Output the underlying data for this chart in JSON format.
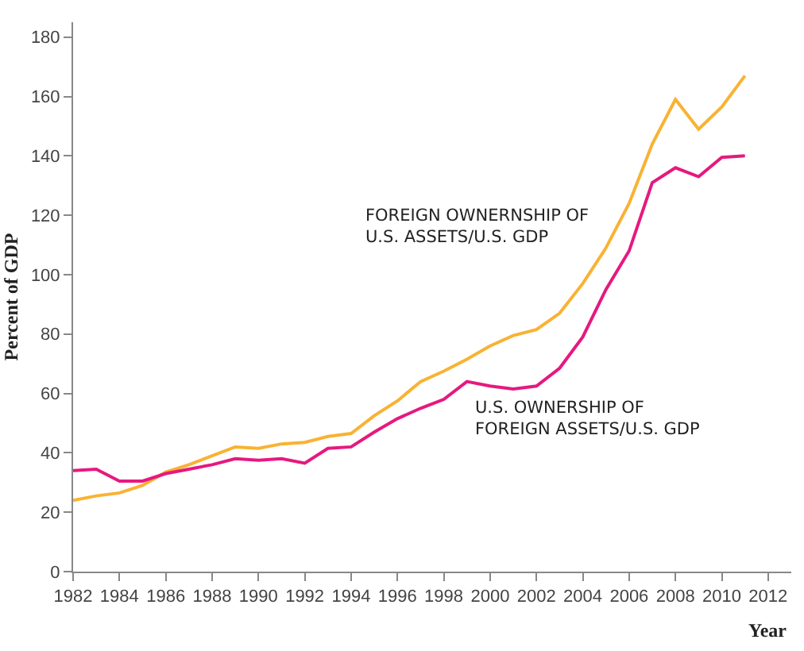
{
  "chart_data": {
    "type": "line",
    "xlabel": "Year",
    "ylabel": "Percent of GDP",
    "x": [
      1982,
      1983,
      1984,
      1985,
      1986,
      1987,
      1988,
      1989,
      1990,
      1991,
      1992,
      1993,
      1994,
      1995,
      1996,
      1997,
      1998,
      1999,
      2000,
      2001,
      2002,
      2003,
      2004,
      2005,
      2006,
      2007,
      2008,
      2009,
      2010,
      2011
    ],
    "series": [
      {
        "name": "FOREIGN OWNERNSHIP OF\nU.S. ASSETS/U.S. GDP",
        "color": "#f9b233",
        "values": [
          24,
          25.5,
          26.5,
          29,
          33.5,
          36,
          39,
          42,
          41.5,
          43,
          43.5,
          45.5,
          46.5,
          52.5,
          57.5,
          64,
          67.5,
          71.5,
          76,
          79.5,
          81.5,
          87,
          97,
          109,
          124,
          144,
          159,
          149,
          156.5,
          167
        ]
      },
      {
        "name": "U.S. OWNERSHIP OF\nFOREIGN ASSETS/U.S. GDP",
        "color": "#e6197f",
        "values": [
          34,
          34.5,
          30.5,
          30.5,
          33,
          34.5,
          36,
          38,
          37.5,
          38,
          36.5,
          41.5,
          42,
          47,
          51.5,
          55,
          58,
          64,
          62.5,
          61.5,
          62.5,
          68.5,
          79,
          95,
          108,
          131,
          136,
          133,
          139.5,
          140
        ]
      }
    ],
    "xlim": [
      1982,
      2013
    ],
    "xticks": [
      1982,
      1984,
      1986,
      1988,
      1990,
      1992,
      1994,
      1996,
      1998,
      2000,
      2002,
      2004,
      2006,
      2008,
      2010,
      2012
    ],
    "ylim": [
      0,
      185
    ],
    "yticks": [
      0,
      20,
      40,
      60,
      80,
      100,
      120,
      140,
      160,
      180
    ],
    "grid": false,
    "marker": "none",
    "line_style": "solid"
  }
}
